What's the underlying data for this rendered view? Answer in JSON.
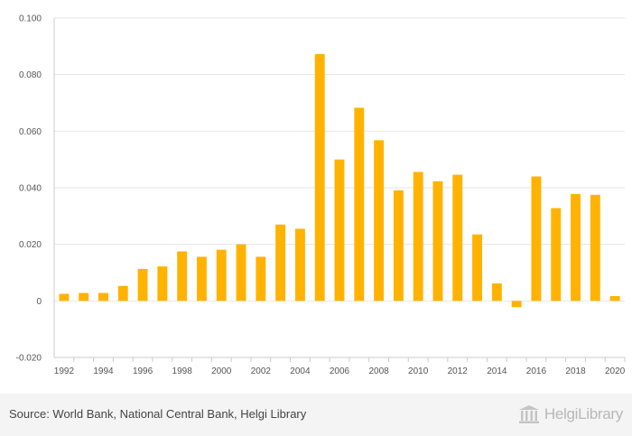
{
  "chart_data": {
    "type": "bar",
    "categories": [
      "1992",
      "1993",
      "1994",
      "1995",
      "1996",
      "1997",
      "1998",
      "1999",
      "2000",
      "2001",
      "2002",
      "2003",
      "2004",
      "2005",
      "2006",
      "2007",
      "2008",
      "2009",
      "2010",
      "2011",
      "2012",
      "2013",
      "2014",
      "2015",
      "2016",
      "2017",
      "2018",
      "2019",
      "2020"
    ],
    "values": [
      0.0025,
      0.0028,
      0.0028,
      0.0053,
      0.0113,
      0.0122,
      0.0175,
      0.0156,
      0.0181,
      0.02,
      0.0156,
      0.027,
      0.0255,
      0.0873,
      0.05,
      0.0683,
      0.0568,
      0.0391,
      0.0456,
      0.0423,
      0.0446,
      0.0235,
      0.0062,
      -0.0022,
      0.044,
      0.0328,
      0.0378,
      0.0375,
      0.0017
    ],
    "x_tick_labels": [
      "1992",
      "1994",
      "1996",
      "1998",
      "2000",
      "2002",
      "2004",
      "2006",
      "2008",
      "2010",
      "2012",
      "2014",
      "2016",
      "2018",
      "2020"
    ],
    "y_ticks": [
      -0.02,
      0,
      0.02,
      0.04,
      0.06,
      0.08,
      0.1
    ],
    "y_tick_labels": [
      "-0.020",
      "0",
      "0.020",
      "0.040",
      "0.060",
      "0.080",
      "0.100"
    ],
    "ylim": [
      -0.02,
      0.1
    ],
    "grid": true,
    "bar_color": "#ffb300",
    "title": "",
    "xlabel": "",
    "ylabel": ""
  },
  "footer": {
    "source": "Source: World Bank, National Central Bank, Helgi Library",
    "brand": "HelgiLibrary"
  },
  "colors": {
    "grid": "#e6e6e6",
    "axis": "#cccccc",
    "footer_bg": "#f4f4f4"
  }
}
